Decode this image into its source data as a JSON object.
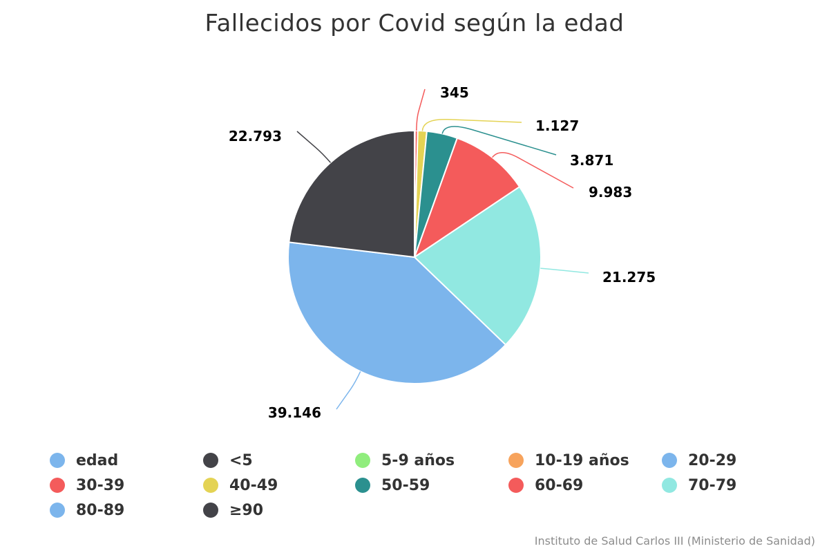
{
  "chart_data": {
    "type": "pie",
    "title": "Fallecidos por Covid según la edad",
    "credits": "Instituto de Salud Carlos III (Ministerio de Sanidad)",
    "slices": [
      {
        "name": "<5",
        "value": 6,
        "label": "",
        "color": "#434348"
      },
      {
        "name": "5-9 años",
        "value": 4,
        "label": "",
        "color": "#90ed7d"
      },
      {
        "name": "10-19 años",
        "value": 12,
        "label": "",
        "color": "#f7a35c"
      },
      {
        "name": "20-29",
        "value": 45,
        "label": "",
        "color": "#7cb5ec"
      },
      {
        "name": "30-39",
        "value": 345,
        "label": "345",
        "color": "#f45b5b"
      },
      {
        "name": "40-49",
        "value": 1127,
        "label": "1.127",
        "color": "#e4d354"
      },
      {
        "name": "50-59",
        "value": 3871,
        "label": "3.871",
        "color": "#2b908f"
      },
      {
        "name": "60-69",
        "value": 9983,
        "label": "9.983",
        "color": "#f45b5b"
      },
      {
        "name": "70-79",
        "value": 21275,
        "label": "21.275",
        "color": "#91e8e1"
      },
      {
        "name": "80-89",
        "value": 39146,
        "label": "39.146",
        "color": "#7cb5ec"
      },
      {
        "name": "≥90",
        "value": 22793,
        "label": "22.793",
        "color": "#434348"
      }
    ],
    "legend": [
      {
        "name": "edad",
        "color": "#7cb5ec"
      },
      {
        "name": "<5",
        "color": "#434348"
      },
      {
        "name": "5-9 años",
        "color": "#90ed7d"
      },
      {
        "name": "10-19 años",
        "color": "#f7a35c"
      },
      {
        "name": "20-29",
        "color": "#7cb5ec"
      },
      {
        "name": "30-39",
        "color": "#f45b5b"
      },
      {
        "name": "40-49",
        "color": "#e4d354"
      },
      {
        "name": "50-59",
        "color": "#2b908f"
      },
      {
        "name": "60-69",
        "color": "#f45b5b"
      },
      {
        "name": "70-79",
        "color": "#91e8e1"
      },
      {
        "name": "80-89",
        "color": "#7cb5ec"
      },
      {
        "name": "≥90",
        "color": "#434348"
      }
    ],
    "legend_position": "bottom"
  }
}
